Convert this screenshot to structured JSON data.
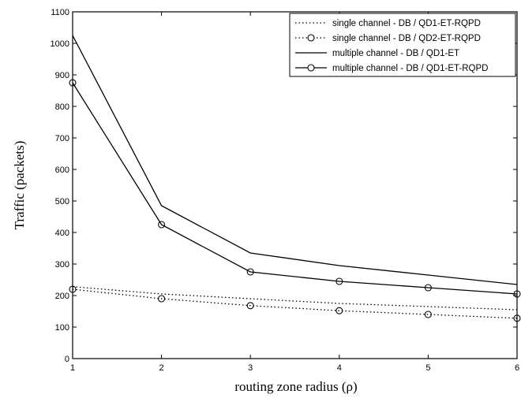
{
  "chart_data": {
    "type": "line",
    "xlabel": "routing zone radius  (ρ)",
    "ylabel": "Traffic (packets)",
    "xlim": [
      1,
      6
    ],
    "ylim": [
      0,
      1100
    ],
    "x": [
      1,
      2,
      3,
      4,
      5,
      6
    ],
    "xticks": [
      "1",
      "2",
      "3",
      "4",
      "5",
      "6"
    ],
    "yticks": [
      "0",
      "100",
      "200",
      "300",
      "400",
      "500",
      "600",
      "700",
      "800",
      "900",
      "1000",
      "1100"
    ],
    "grid": false,
    "legend_position": "top-right",
    "series": [
      {
        "name": "single channel    - DB / QD1-ET-RQPD",
        "style": "dotted",
        "marker": "none",
        "color": "#000000",
        "values": [
          228,
          205,
          190,
          175,
          165,
          155
        ]
      },
      {
        "name": "single channel    - DB / QD2-ET-RQPD",
        "style": "dotted",
        "marker": "circle",
        "color": "#000000",
        "values": [
          220,
          190,
          168,
          152,
          140,
          128
        ]
      },
      {
        "name": "multiple channel - DB / QD1-ET",
        "style": "solid",
        "marker": "none",
        "color": "#000000",
        "values": [
          1025,
          485,
          335,
          295,
          265,
          235
        ]
      },
      {
        "name": "multiple channel - DB / QD1-ET-RQPD",
        "style": "solid",
        "marker": "circle",
        "color": "#000000",
        "values": [
          875,
          425,
          275,
          245,
          225,
          205
        ]
      }
    ]
  }
}
